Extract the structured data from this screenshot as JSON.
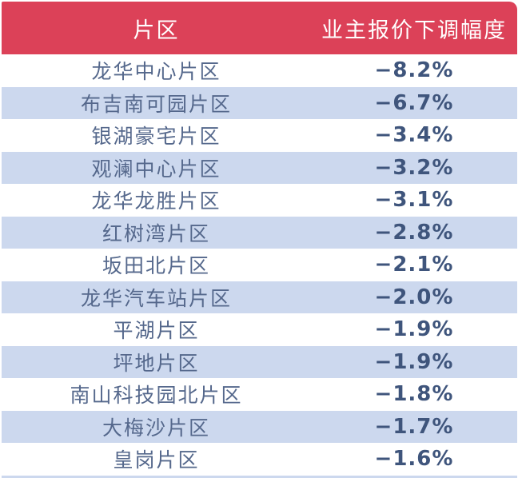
{
  "colors": {
    "header_bg": "#dc4158",
    "header_text": "#ffffff",
    "stripe_bg": "#ccd8ee",
    "row_bg": "#ffffff",
    "name_text": "#55688c",
    "value_text": "#3f557c"
  },
  "table": {
    "columns": [
      {
        "label": "片区"
      },
      {
        "label": "业主报价下调幅度"
      }
    ],
    "rows": [
      {
        "region": "龙华中心片区",
        "value": "−8.2%"
      },
      {
        "region": "布吉南可园片区",
        "value": "−6.7%"
      },
      {
        "region": "银湖豪宅片区",
        "value": "−3.4%"
      },
      {
        "region": "观澜中心片区",
        "value": "−3.2%"
      },
      {
        "region": "龙华龙胜片区",
        "value": "−3.1%"
      },
      {
        "region": "红树湾片区",
        "value": "−2.8%"
      },
      {
        "region": "坂田北片区",
        "value": "−2.1%"
      },
      {
        "region": "龙华汽车站片区",
        "value": "−2.0%"
      },
      {
        "region": "平湖片区",
        "value": "−1.9%"
      },
      {
        "region": "坪地片区",
        "value": "−1.9%"
      },
      {
        "region": "南山科技园北片区",
        "value": "−1.8%"
      },
      {
        "region": "大梅沙片区",
        "value": "−1.7%"
      },
      {
        "region": "皇岗片区",
        "value": "−1.6%"
      }
    ]
  },
  "chart_data": {
    "type": "table",
    "title": "",
    "columns": [
      "片区",
      "业主报价下调幅度"
    ],
    "categories": [
      "龙华中心片区",
      "布吉南可园片区",
      "银湖豪宅片区",
      "观澜中心片区",
      "龙华龙胜片区",
      "红树湾片区",
      "坂田北片区",
      "龙华汽车站片区",
      "平湖片区",
      "坪地片区",
      "南山科技园北片区",
      "大梅沙片区",
      "皇岗片区"
    ],
    "values": [
      -8.2,
      -6.7,
      -3.4,
      -3.2,
      -3.1,
      -2.8,
      -2.1,
      -2.0,
      -1.9,
      -1.9,
      -1.8,
      -1.7,
      -1.6
    ],
    "unit": "%",
    "layout": "header red bar, zebra striped rows (white / light blue), two centered columns 60%/40%"
  }
}
